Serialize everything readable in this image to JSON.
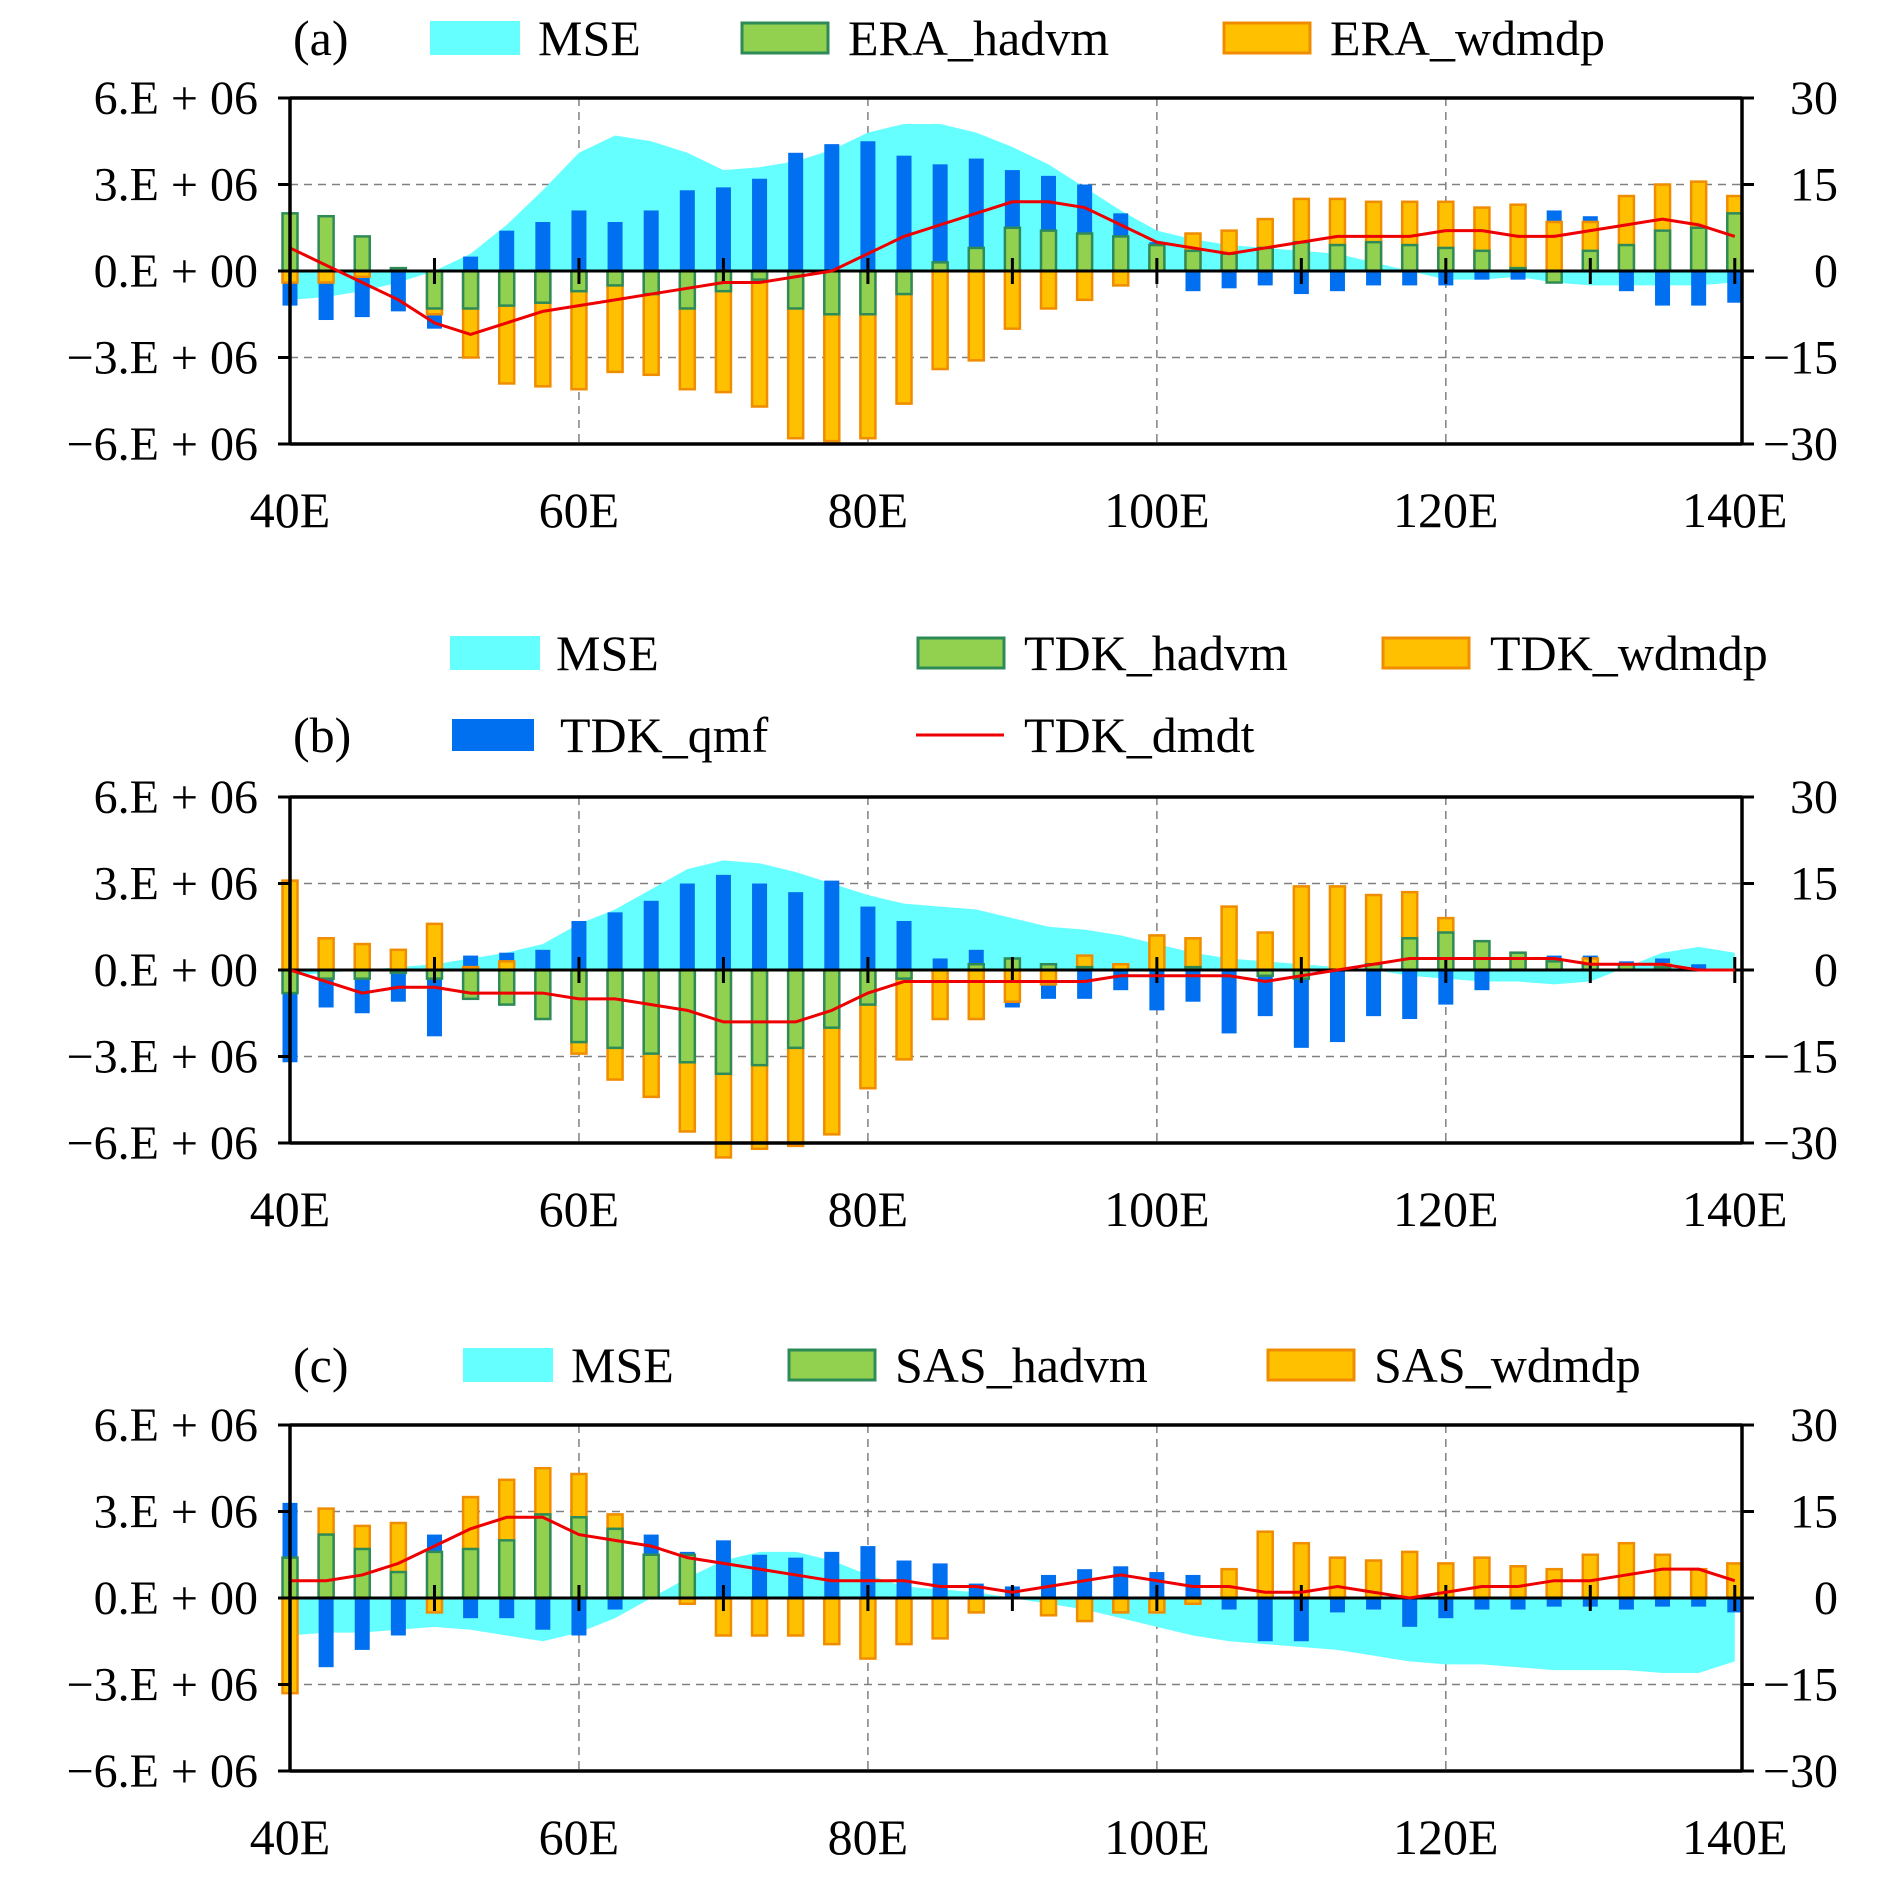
{
  "figure": {
    "x_tick_labels": [
      "40E",
      "60E",
      "80E",
      "100E",
      "120E",
      "140E"
    ],
    "left_tick_labels": [
      "6.E + 06",
      "3.E + 06",
      "0.E + 00",
      "−3.E + 06",
      "−6.E + 06"
    ],
    "right_tick_labels": [
      "30",
      "15",
      "0",
      "−15",
      "−30"
    ],
    "colors": {
      "mse": "#66FFFF",
      "hadvm_fill": "#92D050",
      "hadvm_edge": "#2E8B57",
      "wdmdp_fill": "#FFC000",
      "wdmdp_edge": "#F08C00",
      "qmf": "#0070F0",
      "dmdt": "#EE0000"
    }
  },
  "chart_data": [
    {
      "type": "bar",
      "panel_label": "(a)",
      "legend": {
        "mse": "MSE",
        "hadvm": "ERA_hadvm",
        "wdmdp": "ERA_wdmdp"
      },
      "x": [
        40,
        42.5,
        45,
        47.5,
        50,
        52.5,
        55,
        57.5,
        60,
        62.5,
        65,
        67.5,
        70,
        72.5,
        75,
        77.5,
        80,
        82.5,
        85,
        87.5,
        90,
        92.5,
        95,
        97.5,
        100,
        102.5,
        105,
        107.5,
        110,
        112.5,
        115,
        117.5,
        120,
        122.5,
        125,
        127.5,
        130,
        132.5,
        135,
        137.5,
        140
      ],
      "xlim": [
        40,
        140.5
      ],
      "ylim_left": [
        -6000000,
        6000000
      ],
      "ylim_right": [
        -30,
        30
      ],
      "series": [
        {
          "key": "mse",
          "type": "area",
          "axis": "left",
          "values": [
            -1000000,
            -900000,
            -700000,
            -400000,
            0,
            600000,
            1600000,
            2800000,
            4100000,
            4700000,
            4500000,
            4100000,
            3500000,
            3600000,
            3800000,
            4200000,
            4800000,
            5100000,
            5100000,
            4800000,
            4300000,
            3700000,
            2900000,
            2100000,
            1400000,
            1100000,
            900000,
            800000,
            700000,
            600000,
            300000,
            0,
            -300000,
            -300000,
            -200000,
            -400000,
            -500000,
            -500000,
            -500000,
            -500000,
            -400000
          ]
        },
        {
          "key": "qmf",
          "type": "bar",
          "axis": "left",
          "values": [
            -1200000,
            -1700000,
            -1600000,
            -1400000,
            -2000000,
            500000,
            1400000,
            1700000,
            2100000,
            1700000,
            2100000,
            2800000,
            2900000,
            3200000,
            4100000,
            4400000,
            4500000,
            4000000,
            3700000,
            3900000,
            3500000,
            3300000,
            3000000,
            2000000,
            1000000,
            -700000,
            -600000,
            -500000,
            -800000,
            -700000,
            -500000,
            -500000,
            -500000,
            -300000,
            -300000,
            2100000,
            1900000,
            -700000,
            -1200000,
            -1200000,
            -1100000
          ]
        },
        {
          "key": "hadvm",
          "type": "bar",
          "axis": "left",
          "values": [
            2000000,
            1900000,
            1200000,
            100000,
            -1300000,
            -1300000,
            -1200000,
            -1100000,
            -700000,
            -500000,
            -800000,
            -1300000,
            -700000,
            -300000,
            -1300000,
            -1500000,
            -1500000,
            -800000,
            300000,
            800000,
            1500000,
            1400000,
            1300000,
            1200000,
            900000,
            700000,
            600000,
            800000,
            1000000,
            900000,
            1000000,
            900000,
            800000,
            700000,
            100000,
            -400000,
            700000,
            900000,
            1400000,
            1500000,
            2000000
          ]
        },
        {
          "key": "wdmdp",
          "type": "bar",
          "axis": "left",
          "values": [
            -400000,
            -400000,
            -200000,
            0,
            -1500000,
            -3000000,
            -3900000,
            -4000000,
            -4100000,
            -3500000,
            -3600000,
            -4100000,
            -4200000,
            -4700000,
            -5800000,
            -5900000,
            -5800000,
            -4600000,
            -3400000,
            -3100000,
            -2000000,
            -1300000,
            -1000000,
            -500000,
            500000,
            1300000,
            1400000,
            1800000,
            2500000,
            2500000,
            2400000,
            2400000,
            2400000,
            2200000,
            2300000,
            1700000,
            1700000,
            2600000,
            3000000,
            3100000,
            2600000
          ]
        },
        {
          "key": "dmdt",
          "type": "line",
          "axis": "right",
          "values": [
            4,
            1,
            -2,
            -5,
            -9,
            -11,
            -9,
            -7,
            -6,
            -5,
            -4,
            -3,
            -2,
            -2,
            -1,
            0,
            3,
            6,
            8,
            10,
            12,
            12,
            11,
            8,
            5,
            4,
            3,
            4,
            5,
            6,
            6,
            6,
            7,
            7,
            6,
            6,
            7,
            8,
            9,
            8,
            6
          ]
        }
      ]
    },
    {
      "type": "bar",
      "panel_label": "(b)",
      "legend": {
        "mse": "MSE",
        "hadvm": "TDK_hadvm",
        "wdmdp": "TDK_wdmdp",
        "qmf": "TDK_qmf",
        "dmdt": "TDK_dmdt"
      },
      "x": [
        40,
        42.5,
        45,
        47.5,
        50,
        52.5,
        55,
        57.5,
        60,
        62.5,
        65,
        67.5,
        70,
        72.5,
        75,
        77.5,
        80,
        82.5,
        85,
        87.5,
        90,
        92.5,
        95,
        97.5,
        100,
        102.5,
        105,
        107.5,
        110,
        112.5,
        115,
        117.5,
        120,
        122.5,
        125,
        127.5,
        130,
        132.5,
        135,
        137.5,
        140
      ],
      "xlim": [
        40,
        140.5
      ],
      "ylim_left": [
        -6000000,
        6000000
      ],
      "ylim_right": [
        -30,
        30
      ],
      "series": [
        {
          "key": "mse",
          "type": "area",
          "axis": "left",
          "values": [
            -200000,
            -100000,
            0,
            100000,
            200000,
            400000,
            600000,
            900000,
            1600000,
            2100000,
            2800000,
            3500000,
            3800000,
            3700000,
            3400000,
            3000000,
            2600000,
            2300000,
            2200000,
            2100000,
            1800000,
            1500000,
            1400000,
            1200000,
            900000,
            600000,
            400000,
            300000,
            200000,
            100000,
            0,
            -200000,
            -300000,
            -400000,
            -400000,
            -500000,
            -400000,
            100000,
            600000,
            800000,
            600000
          ]
        },
        {
          "key": "qmf",
          "type": "bar",
          "axis": "left",
          "values": [
            -3200000,
            -1300000,
            -1500000,
            -1100000,
            -2300000,
            500000,
            600000,
            700000,
            1700000,
            2000000,
            2400000,
            3000000,
            3300000,
            3000000,
            2700000,
            3100000,
            2200000,
            1700000,
            400000,
            700000,
            -1300000,
            -1000000,
            -1000000,
            -700000,
            -1400000,
            -1100000,
            -2200000,
            -1600000,
            -2700000,
            -2500000,
            -1600000,
            -1700000,
            -1200000,
            -700000,
            300000,
            500000,
            500000,
            300000,
            400000,
            200000,
            0
          ]
        },
        {
          "key": "hadvm",
          "type": "bar",
          "axis": "left",
          "values": [
            -800000,
            -300000,
            -300000,
            -100000,
            -300000,
            -1000000,
            -1200000,
            -1700000,
            -2500000,
            -2700000,
            -2900000,
            -3200000,
            -3600000,
            -3300000,
            -2700000,
            -2000000,
            -1200000,
            -300000,
            0,
            200000,
            400000,
            200000,
            100000,
            0,
            0,
            100000,
            0,
            -200000,
            -300000,
            0,
            200000,
            1100000,
            1300000,
            1000000,
            600000,
            300000,
            200000,
            200000,
            100000,
            0,
            0
          ]
        },
        {
          "key": "wdmdp",
          "type": "bar",
          "axis": "left",
          "values": [
            3100000,
            1100000,
            900000,
            700000,
            1600000,
            100000,
            300000,
            0,
            -2900000,
            -3800000,
            -4400000,
            -5600000,
            -6500000,
            -6200000,
            -6100000,
            -5700000,
            -4100000,
            -3100000,
            -1700000,
            -1700000,
            -1100000,
            -500000,
            500000,
            200000,
            1200000,
            1100000,
            2200000,
            1300000,
            2900000,
            2900000,
            2600000,
            2700000,
            1800000,
            300000,
            600000,
            300000,
            400000,
            0,
            200000,
            0,
            0
          ]
        },
        {
          "key": "dmdt",
          "type": "line",
          "axis": "right",
          "values": [
            0,
            -2,
            -4,
            -3,
            -3,
            -4,
            -4,
            -4,
            -5,
            -5,
            -6,
            -7,
            -9,
            -9,
            -9,
            -7,
            -4,
            -2,
            -2,
            -2,
            -2,
            -2,
            -2,
            -1,
            -1,
            -1,
            -1,
            -2,
            -1,
            0,
            1,
            2,
            2,
            2,
            2,
            2,
            1,
            1,
            1,
            0,
            0
          ]
        }
      ]
    },
    {
      "type": "bar",
      "panel_label": "(c)",
      "legend": {
        "mse": "MSE",
        "hadvm": "SAS_hadvm",
        "wdmdp": "SAS_wdmdp"
      },
      "x": [
        40,
        42.5,
        45,
        47.5,
        50,
        52.5,
        55,
        57.5,
        60,
        62.5,
        65,
        67.5,
        70,
        72.5,
        75,
        77.5,
        80,
        82.5,
        85,
        87.5,
        90,
        92.5,
        95,
        97.5,
        100,
        102.5,
        105,
        107.5,
        110,
        112.5,
        115,
        117.5,
        120,
        122.5,
        125,
        127.5,
        130,
        132.5,
        135,
        137.5,
        140
      ],
      "xlim": [
        40,
        140.5
      ],
      "ylim_left": [
        -6000000,
        6000000
      ],
      "ylim_right": [
        -30,
        30
      ],
      "series": [
        {
          "key": "mse",
          "type": "area",
          "axis": "left",
          "values": [
            -1300000,
            -1200000,
            -1200000,
            -1100000,
            -1000000,
            -1100000,
            -1300000,
            -1500000,
            -1200000,
            -700000,
            0,
            700000,
            1300000,
            1600000,
            1600000,
            1300000,
            800000,
            400000,
            300000,
            200000,
            0,
            -200000,
            -400000,
            -700000,
            -1000000,
            -1300000,
            -1500000,
            -1600000,
            -1700000,
            -1800000,
            -2000000,
            -2200000,
            -2300000,
            -2300000,
            -2400000,
            -2500000,
            -2500000,
            -2500000,
            -2600000,
            -2600000,
            -2200000
          ]
        },
        {
          "key": "qmf",
          "type": "bar",
          "axis": "left",
          "values": [
            3300000,
            -2400000,
            -1800000,
            -1300000,
            2200000,
            -700000,
            -700000,
            -1100000,
            -1300000,
            -400000,
            2200000,
            1600000,
            2000000,
            1500000,
            1400000,
            1600000,
            1800000,
            1300000,
            1200000,
            500000,
            400000,
            800000,
            1000000,
            1100000,
            900000,
            800000,
            -400000,
            -1500000,
            -1500000,
            -500000,
            -400000,
            -1000000,
            -700000,
            -400000,
            -400000,
            -300000,
            -300000,
            -400000,
            -300000,
            -300000,
            -500000
          ]
        },
        {
          "key": "hadvm",
          "type": "bar",
          "axis": "left",
          "values": [
            1400000,
            2200000,
            1700000,
            900000,
            1600000,
            1700000,
            2000000,
            2900000,
            2800000,
            2400000,
            1500000,
            1500000,
            0,
            0,
            0,
            0,
            0,
            0,
            0,
            0,
            0,
            0,
            0,
            0,
            0,
            0,
            0,
            0,
            0,
            0,
            0,
            0,
            0,
            0,
            0,
            0,
            0,
            0,
            0,
            0,
            0
          ]
        },
        {
          "key": "wdmdp",
          "type": "bar",
          "axis": "left",
          "values": [
            -3300000,
            3100000,
            2500000,
            2600000,
            -500000,
            3500000,
            4100000,
            4500000,
            4300000,
            2900000,
            0,
            -200000,
            -1300000,
            -1300000,
            -1300000,
            -1600000,
            -2100000,
            -1600000,
            -1400000,
            -500000,
            0,
            -600000,
            -800000,
            -500000,
            -500000,
            -200000,
            1000000,
            2300000,
            1900000,
            1400000,
            1300000,
            1600000,
            1200000,
            1400000,
            1100000,
            1000000,
            1500000,
            1900000,
            1500000,
            1000000,
            1200000
          ]
        },
        {
          "key": "dmdt",
          "type": "line",
          "axis": "right",
          "values": [
            3,
            3,
            4,
            6,
            9,
            12,
            14,
            14,
            11,
            10,
            9,
            7,
            6,
            5,
            4,
            3,
            3,
            3,
            2,
            2,
            1,
            2,
            3,
            4,
            3,
            2,
            2,
            1,
            1,
            2,
            1,
            0,
            1,
            2,
            2,
            3,
            3,
            4,
            5,
            5,
            3
          ]
        }
      ]
    }
  ]
}
